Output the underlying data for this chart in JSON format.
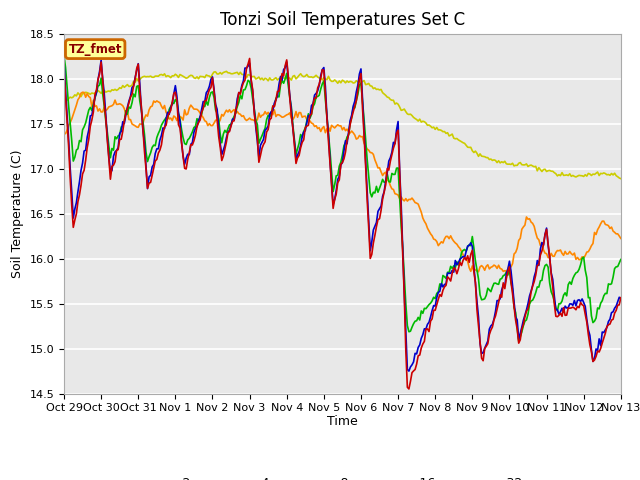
{
  "title": "Tonzi Soil Temperatures Set C",
  "ylabel": "Soil Temperature (C)",
  "xlabel": "Time",
  "ylim": [
    14.5,
    18.5
  ],
  "yticks": [
    14.5,
    15.0,
    15.5,
    16.0,
    16.5,
    17.0,
    17.5,
    18.0,
    18.5
  ],
  "background_color": "#e8e8e8",
  "fig_background": "#ffffff",
  "legend_label": "TZ_fmet",
  "legend_box_color": "#ffff99",
  "legend_box_edge": "#cc6600",
  "line_colors": {
    "-2cm": "#cc0000",
    "-4cm": "#0000cc",
    "-8cm": "#00bb00",
    "-16cm": "#ff8800",
    "-32cm": "#cccc00"
  },
  "line_width": 1.2,
  "xtick_labels": [
    "Oct 29",
    "Oct 30",
    "Oct 31",
    "Nov 1",
    "Nov 2",
    "Nov 3",
    "Nov 4",
    "Nov 5",
    "Nov 6",
    "Nov 7",
    "Nov 8",
    "Nov 9",
    "Nov 10",
    "Nov 11",
    "Nov 12",
    "Nov 13"
  ],
  "xtick_positions": [
    0,
    24,
    48,
    72,
    96,
    120,
    144,
    168,
    192,
    216,
    240,
    264,
    288,
    312,
    336,
    360
  ],
  "title_fontsize": 12,
  "axis_label_fontsize": 9,
  "tick_fontsize": 8
}
